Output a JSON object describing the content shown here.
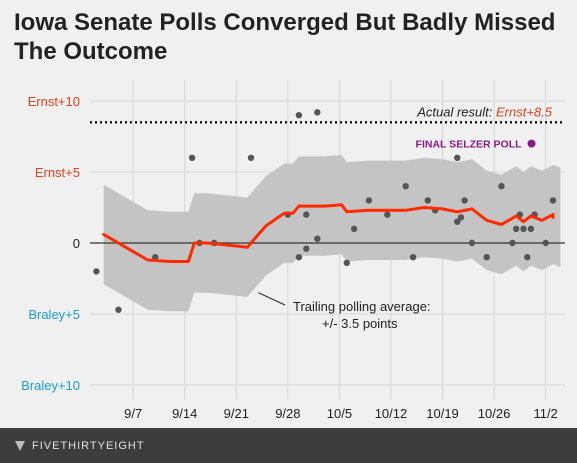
{
  "title": "Iowa Senate Polls Converged But Badly Missed The Outcome",
  "footer": {
    "brand": "FIVETHIRTYEIGHT"
  },
  "colors": {
    "ernst": "#e8401e",
    "braley": "#1a9fd6",
    "average": "#ff2a00",
    "band": "#c4c4c4",
    "dots": "#555555",
    "selzer": "#8a1a8a",
    "text": "#222222"
  },
  "chart_data": {
    "type": "line",
    "title": "Iowa Senate Polls Converged But Badly Missed The Outcome",
    "xlabel": "",
    "ylabel": "",
    "x_unit": "day (Sep 1 = 1, Oct 1 = 31, Nov 1 = 62)",
    "xlim": [
      1,
      64
    ],
    "ylim": [
      -10,
      10
    ],
    "x_ticks": [
      {
        "x": 7,
        "label": "9/7"
      },
      {
        "x": 14,
        "label": "9/14"
      },
      {
        "x": 21,
        "label": "9/21"
      },
      {
        "x": 28,
        "label": "9/28"
      },
      {
        "x": 35,
        "label": "10/5"
      },
      {
        "x": 42,
        "label": "10/12"
      },
      {
        "x": 49,
        "label": "10/19"
      },
      {
        "x": 56,
        "label": "10/26"
      },
      {
        "x": 63,
        "label": "11/2"
      }
    ],
    "y_ticks": [
      {
        "y": 10,
        "label": "Ernst+10",
        "side": "ernst"
      },
      {
        "y": 5,
        "label": "Ernst+5",
        "side": "ernst"
      },
      {
        "y": 0,
        "label": "0",
        "side": "neutral"
      },
      {
        "y": -5,
        "label": "Braley+5",
        "side": "braley"
      },
      {
        "y": -10,
        "label": "Braley+10",
        "side": "braley"
      }
    ],
    "grid": true,
    "actual_result": {
      "y": 8.5,
      "label_prefix": "Actual result: ",
      "label_value": "Ernst+8.5"
    },
    "average": [
      {
        "x": 3,
        "y": 0.6
      },
      {
        "x": 6,
        "y": -0.3
      },
      {
        "x": 9,
        "y": -1.2
      },
      {
        "x": 12,
        "y": -1.3
      },
      {
        "x": 14.5,
        "y": -1.3
      },
      {
        "x": 15.3,
        "y": 0.0
      },
      {
        "x": 17,
        "y": 0.0
      },
      {
        "x": 19,
        "y": -0.1
      },
      {
        "x": 22.5,
        "y": -0.3
      },
      {
        "x": 25,
        "y": 1.2
      },
      {
        "x": 27.5,
        "y": 2.1
      },
      {
        "x": 28.7,
        "y": 2.1
      },
      {
        "x": 29.5,
        "y": 2.6
      },
      {
        "x": 33,
        "y": 2.6
      },
      {
        "x": 35.3,
        "y": 2.7
      },
      {
        "x": 36,
        "y": 2.2
      },
      {
        "x": 39,
        "y": 2.3
      },
      {
        "x": 42,
        "y": 2.3
      },
      {
        "x": 44,
        "y": 2.3
      },
      {
        "x": 46.5,
        "y": 2.5
      },
      {
        "x": 49,
        "y": 2.4
      },
      {
        "x": 51,
        "y": 2.2
      },
      {
        "x": 53,
        "y": 2.4
      },
      {
        "x": 55,
        "y": 1.6
      },
      {
        "x": 57,
        "y": 1.3
      },
      {
        "x": 59,
        "y": 1.9
      },
      {
        "x": 60,
        "y": 1.5
      },
      {
        "x": 61,
        "y": 1.9
      },
      {
        "x": 62.5,
        "y": 1.6
      },
      {
        "x": 64,
        "y": 2.0
      },
      {
        "x": 65,
        "y": 1.8
      }
    ],
    "band": {
      "width": 3.5,
      "label_line1": "Trailing polling average:",
      "label_line2": "+/- 3.5 points"
    },
    "polls": [
      {
        "x": 2,
        "y": -2.0
      },
      {
        "x": 5,
        "y": -4.7
      },
      {
        "x": 10,
        "y": -1.0
      },
      {
        "x": 15,
        "y": 6.0
      },
      {
        "x": 16,
        "y": 0.0
      },
      {
        "x": 18,
        "y": 0.0
      },
      {
        "x": 23,
        "y": 6.0
      },
      {
        "x": 28,
        "y": 2.0
      },
      {
        "x": 29.5,
        "y": -1.0
      },
      {
        "x": 29.5,
        "y": 9.0
      },
      {
        "x": 30.5,
        "y": -0.4
      },
      {
        "x": 30.5,
        "y": 2.0
      },
      {
        "x": 32,
        "y": 0.3
      },
      {
        "x": 32,
        "y": 9.2
      },
      {
        "x": 36,
        "y": -1.4
      },
      {
        "x": 37,
        "y": 1.0
      },
      {
        "x": 39,
        "y": 3.0
      },
      {
        "x": 41.5,
        "y": 2.0
      },
      {
        "x": 44,
        "y": 4.0
      },
      {
        "x": 45,
        "y": -1.0
      },
      {
        "x": 47,
        "y": 3.0
      },
      {
        "x": 48,
        "y": 2.3
      },
      {
        "x": 51,
        "y": 1.5
      },
      {
        "x": 51,
        "y": 6.0
      },
      {
        "x": 51.5,
        "y": 1.8
      },
      {
        "x": 52,
        "y": 3.0
      },
      {
        "x": 53,
        "y": 0.0
      },
      {
        "x": 55,
        "y": -1.0
      },
      {
        "x": 57,
        "y": 4.0
      },
      {
        "x": 58.5,
        "y": 0.0
      },
      {
        "x": 59,
        "y": 1.0
      },
      {
        "x": 59.5,
        "y": 2.0
      },
      {
        "x": 60,
        "y": 1.0
      },
      {
        "x": 60.5,
        "y": -1.0
      },
      {
        "x": 61,
        "y": 1.0
      },
      {
        "x": 61.5,
        "y": 2.0
      },
      {
        "x": 63,
        "y": 0.0
      },
      {
        "x": 64,
        "y": 3.0
      }
    ],
    "selzer": {
      "x": 60,
      "y": 7.0,
      "label": "FINAL SELZER POLL"
    }
  }
}
